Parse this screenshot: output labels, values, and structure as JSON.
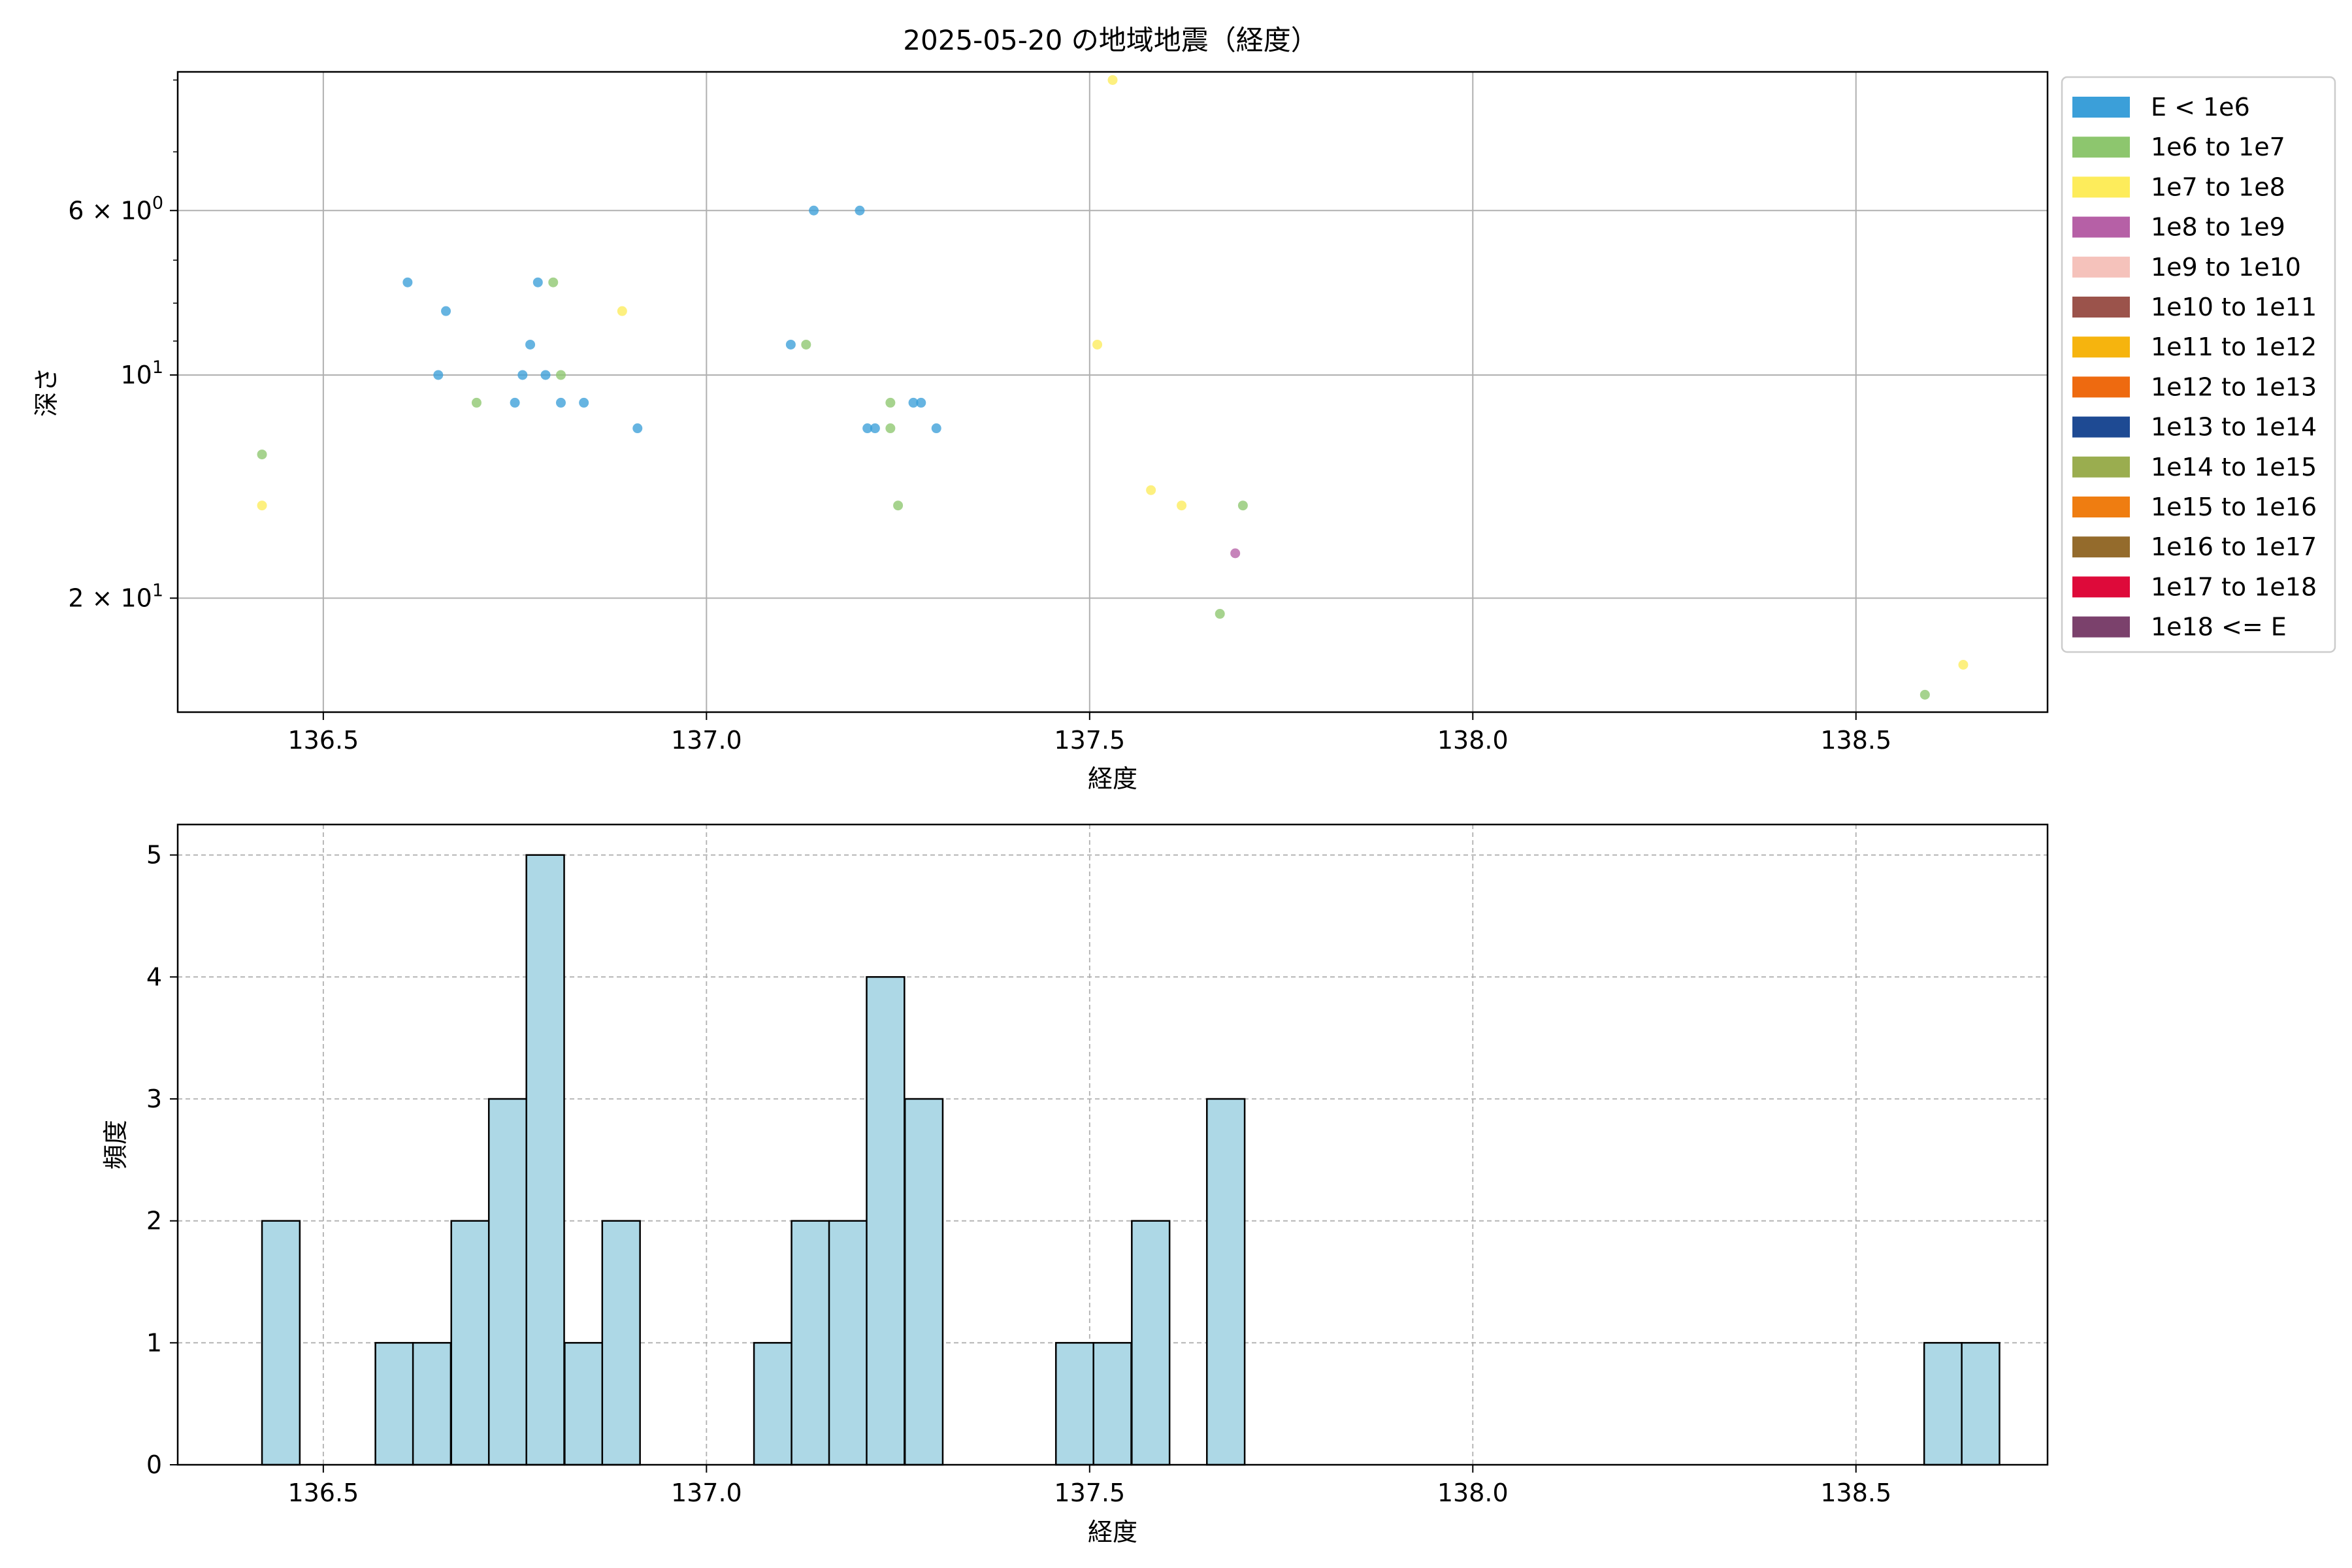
{
  "colors": {
    "hist_fill": "#add8e6",
    "hist_edge": "#000000",
    "grid": "#b0b0b0"
  },
  "chart_data": [
    {
      "type": "scatter",
      "title": "2025-05-20 の地域地震（経度）",
      "xlabel": "経度",
      "ylabel": "深さ",
      "xlim": [
        136.31,
        138.75
      ],
      "ylim": [
        28.5,
        3.9
      ],
      "y_scale": "log-inverted",
      "grid": true,
      "x_ticks": [
        {
          "value": 136.5,
          "label": "136.5"
        },
        {
          "value": 137.0,
          "label": "137.0"
        },
        {
          "value": 137.5,
          "label": "137.5"
        },
        {
          "value": 138.0,
          "label": "138.0"
        },
        {
          "value": 138.5,
          "label": "138.5"
        }
      ],
      "y_ticks": [
        {
          "value": 6,
          "base": "6 × 10",
          "exp": "0"
        },
        {
          "value": 10,
          "base": "10",
          "exp": "1"
        },
        {
          "value": 20,
          "base": "2 × 10",
          "exp": "1"
        }
      ],
      "y_minor_ticks": [
        4,
        5,
        7,
        8,
        9,
        30
      ],
      "legend_position": "outside-right",
      "legend": [
        {
          "label": "E < 1e6",
          "color": "#3b9fd9"
        },
        {
          "label": "1e6 to 1e7",
          "color": "#8dc66e"
        },
        {
          "label": "1e7 to 1e8",
          "color": "#fdec5b"
        },
        {
          "label": "1e8 to 1e9",
          "color": "#b660a6"
        },
        {
          "label": "1e9 to 1e10",
          "color": "#f5c2bb"
        },
        {
          "label": "1e10 to 1e11",
          "color": "#9b534b"
        },
        {
          "label": "1e11 to 1e12",
          "color": "#f6b40e"
        },
        {
          "label": "1e12 to 1e13",
          "color": "#ee6a10"
        },
        {
          "label": "1e13 to 1e14",
          "color": "#1e4a93"
        },
        {
          "label": "1e14 to 1e15",
          "color": "#9aad4f"
        },
        {
          "label": "1e15 to 1e16",
          "color": "#ef7d11"
        },
        {
          "label": "1e16 to 1e17",
          "color": "#946b2c"
        },
        {
          "label": "1e17 to 1e18",
          "color": "#de0a3a"
        },
        {
          "label": "1e18 <= E",
          "color": "#7b416c"
        }
      ],
      "points": [
        {
          "x": 137.53,
          "y": 4.0,
          "c": 2
        },
        {
          "x": 137.14,
          "y": 6.0,
          "c": 0
        },
        {
          "x": 137.2,
          "y": 6.0,
          "c": 0
        },
        {
          "x": 136.61,
          "y": 7.5,
          "c": 0
        },
        {
          "x": 136.78,
          "y": 7.5,
          "c": 0
        },
        {
          "x": 136.8,
          "y": 7.5,
          "c": 1
        },
        {
          "x": 136.66,
          "y": 8.2,
          "c": 0
        },
        {
          "x": 136.89,
          "y": 8.2,
          "c": 2
        },
        {
          "x": 136.77,
          "y": 9.1,
          "c": 0
        },
        {
          "x": 137.11,
          "y": 9.1,
          "c": 0
        },
        {
          "x": 137.13,
          "y": 9.1,
          "c": 1
        },
        {
          "x": 137.51,
          "y": 9.1,
          "c": 2
        },
        {
          "x": 136.65,
          "y": 10.0,
          "c": 0
        },
        {
          "x": 136.76,
          "y": 10.0,
          "c": 0
        },
        {
          "x": 136.79,
          "y": 10.0,
          "c": 0
        },
        {
          "x": 136.81,
          "y": 10.0,
          "c": 1
        },
        {
          "x": 136.7,
          "y": 10.9,
          "c": 1
        },
        {
          "x": 136.75,
          "y": 10.9,
          "c": 0
        },
        {
          "x": 136.81,
          "y": 10.9,
          "c": 0
        },
        {
          "x": 136.84,
          "y": 10.9,
          "c": 0
        },
        {
          "x": 137.24,
          "y": 10.9,
          "c": 1
        },
        {
          "x": 137.27,
          "y": 10.9,
          "c": 0
        },
        {
          "x": 137.28,
          "y": 10.9,
          "c": 0
        },
        {
          "x": 136.91,
          "y": 11.8,
          "c": 0
        },
        {
          "x": 137.21,
          "y": 11.8,
          "c": 0
        },
        {
          "x": 137.22,
          "y": 11.8,
          "c": 0
        },
        {
          "x": 137.24,
          "y": 11.8,
          "c": 1
        },
        {
          "x": 137.3,
          "y": 11.8,
          "c": 0
        },
        {
          "x": 136.42,
          "y": 12.8,
          "c": 1
        },
        {
          "x": 137.58,
          "y": 14.3,
          "c": 2
        },
        {
          "x": 136.42,
          "y": 15.0,
          "c": 2
        },
        {
          "x": 137.25,
          "y": 15.0,
          "c": 1
        },
        {
          "x": 137.62,
          "y": 15.0,
          "c": 2
        },
        {
          "x": 137.7,
          "y": 15.0,
          "c": 1
        },
        {
          "x": 137.69,
          "y": 17.4,
          "c": 3
        },
        {
          "x": 137.67,
          "y": 21.0,
          "c": 1
        },
        {
          "x": 138.64,
          "y": 24.6,
          "c": 2
        },
        {
          "x": 138.59,
          "y": 27.0,
          "c": 1
        }
      ]
    },
    {
      "type": "bar",
      "xlabel": "経度",
      "ylabel": "頻度",
      "xlim": [
        136.31,
        138.75
      ],
      "ylim": [
        0,
        5.25
      ],
      "grid": true,
      "bin_width": 0.0493,
      "x_ticks": [
        {
          "value": 136.5,
          "label": "136.5"
        },
        {
          "value": 137.0,
          "label": "137.0"
        },
        {
          "value": 137.5,
          "label": "137.5"
        },
        {
          "value": 138.0,
          "label": "138.0"
        },
        {
          "value": 138.5,
          "label": "138.5"
        }
      ],
      "y_ticks": [
        {
          "value": 0,
          "label": "0"
        },
        {
          "value": 1,
          "label": "1"
        },
        {
          "value": 2,
          "label": "2"
        },
        {
          "value": 3,
          "label": "3"
        },
        {
          "value": 4,
          "label": "4"
        },
        {
          "value": 5,
          "label": "5"
        }
      ],
      "bins": [
        {
          "x0": 136.42,
          "v": 2
        },
        {
          "x0": 136.568,
          "v": 1
        },
        {
          "x0": 136.617,
          "v": 1
        },
        {
          "x0": 136.667,
          "v": 2
        },
        {
          "x0": 136.716,
          "v": 3
        },
        {
          "x0": 136.765,
          "v": 5
        },
        {
          "x0": 136.815,
          "v": 1
        },
        {
          "x0": 136.864,
          "v": 2
        },
        {
          "x0": 137.062,
          "v": 1
        },
        {
          "x0": 137.111,
          "v": 2
        },
        {
          "x0": 137.16,
          "v": 2
        },
        {
          "x0": 137.209,
          "v": 4
        },
        {
          "x0": 137.259,
          "v": 3
        },
        {
          "x0": 137.456,
          "v": 1
        },
        {
          "x0": 137.505,
          "v": 1
        },
        {
          "x0": 137.555,
          "v": 2
        },
        {
          "x0": 137.653,
          "v": 3
        },
        {
          "x0": 138.589,
          "v": 1
        },
        {
          "x0": 138.638,
          "v": 1
        }
      ]
    }
  ]
}
